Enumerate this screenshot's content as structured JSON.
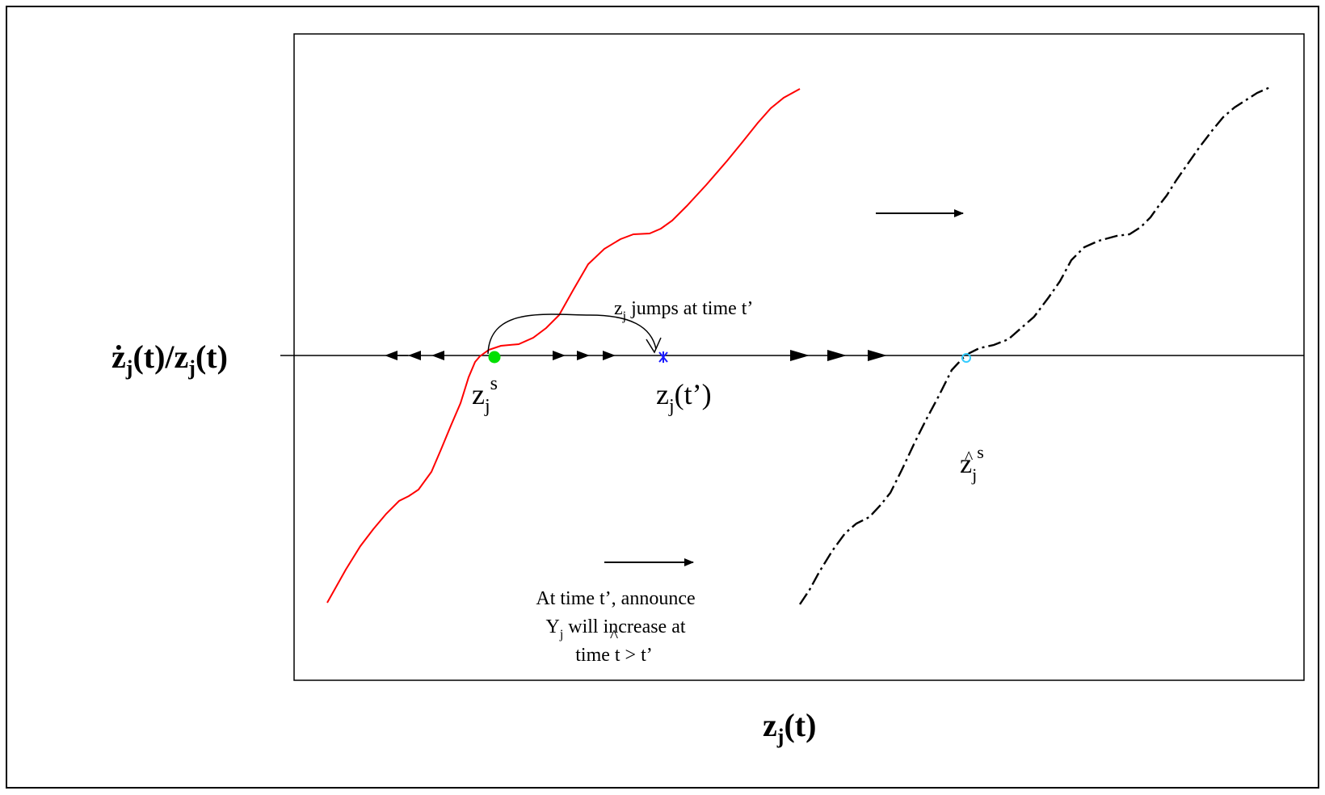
{
  "axes": {
    "y_label": {
      "dot": "ż",
      "sub": "j",
      "mid": "(t)/z",
      "sub2": "j",
      "end": "(t)"
    },
    "x_label": {
      "base": "z",
      "sub": "j",
      "end": "(t)"
    }
  },
  "annotations": {
    "jump": {
      "base": "z",
      "sub": "j",
      "rest": " jumps at time t’"
    },
    "zjs": {
      "base": "z",
      "sub": "j",
      "sup": "s"
    },
    "zjt": {
      "base": "z",
      "sub": "j",
      "end": "(t’)"
    },
    "zhat": {
      "hat": "^",
      "base": "z",
      "sub": "j",
      "sup": "s"
    },
    "announce_line1": "At time t’, announce",
    "announce_line2_base": "Y",
    "announce_line2_sub": "j",
    "announce_line2_rest": " will increase at",
    "announce_line3": "time t > t’",
    "announce_hat": "^"
  },
  "colors": {
    "red_curve": "#ff0000",
    "black_curve": "#000000",
    "stable_point": "#00e000",
    "jump_point": "#1a1aff",
    "hat_point": "#33ccff"
  }
}
